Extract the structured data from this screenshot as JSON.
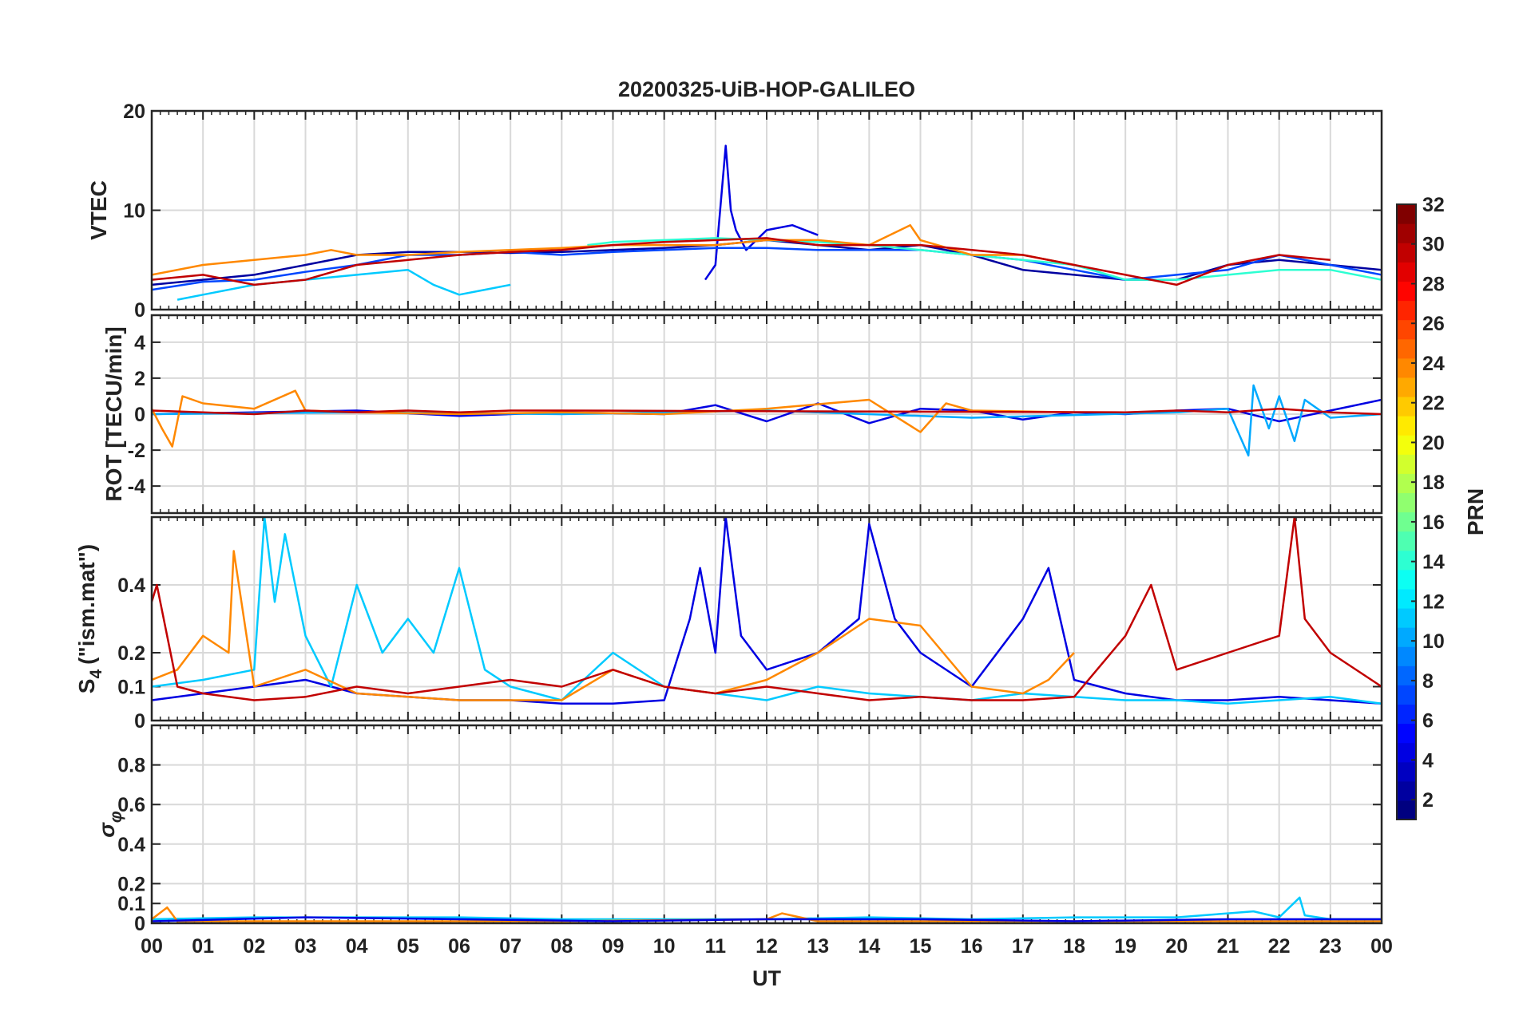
{
  "chart_data": {
    "type": "line",
    "title": "20200325-UiB-HOP-GALILEO",
    "xlabel": "UT",
    "x_ticks": [
      "00",
      "01",
      "02",
      "03",
      "04",
      "05",
      "06",
      "07",
      "08",
      "09",
      "10",
      "11",
      "12",
      "13",
      "14",
      "15",
      "16",
      "17",
      "18",
      "19",
      "20",
      "21",
      "22",
      "23",
      "00"
    ],
    "xlim_hours": [
      0,
      24
    ],
    "grid": true,
    "panels": [
      {
        "id": "vtec",
        "ylabel": "VTEC",
        "ylim": [
          0,
          20
        ],
        "yticks": [
          0,
          10,
          20
        ],
        "ytick_labels": [
          "0",
          "10",
          "20"
        ],
        "series": [
          {
            "name": "PRN 2",
            "prn": 2,
            "x": [
              0,
              1,
              2,
              3,
              4,
              5,
              6,
              7,
              8,
              9,
              10,
              11,
              12,
              13,
              14,
              15,
              16,
              17,
              18,
              19,
              20,
              21,
              22,
              23,
              24
            ],
            "values": [
              2.5,
              3.0,
              3.5,
              4.5,
              5.5,
              5.8,
              5.8,
              5.7,
              5.8,
              6.0,
              6.2,
              6.5,
              7.0,
              6.5,
              6.0,
              6.5,
              5.5,
              4.0,
              3.5,
              3.0,
              3.0,
              4.5,
              5.0,
              4.5,
              4.0
            ]
          },
          {
            "name": "PRN 4",
            "prn": 4,
            "x": [
              10.8,
              11.0,
              11.2,
              11.3,
              11.4,
              11.6,
              12.0,
              12.5,
              13.0
            ],
            "values": [
              3.0,
              4.5,
              16.5,
              10.0,
              8.0,
              6.0,
              8.0,
              8.5,
              7.5
            ]
          },
          {
            "name": "PRN 7",
            "prn": 7,
            "x": [
              0,
              1,
              2,
              3,
              4,
              5,
              6,
              7,
              8,
              9,
              10,
              11,
              12,
              13,
              14,
              15,
              16,
              17,
              18,
              19,
              20,
              21,
              22,
              23,
              24
            ],
            "values": [
              2.0,
              2.8,
              3.0,
              3.8,
              4.5,
              5.5,
              5.5,
              5.8,
              5.5,
              5.8,
              6.0,
              6.2,
              6.2,
              6.0,
              6.0,
              6.0,
              5.5,
              5.0,
              4.0,
              3.0,
              3.5,
              4.0,
              5.5,
              4.5,
              3.5
            ]
          },
          {
            "name": "PRN 11",
            "prn": 11,
            "x": [
              0.5,
              1.0,
              2.0,
              3.0,
              4.0,
              5.0,
              5.5,
              6.0,
              6.5,
              7.0
            ],
            "values": [
              1.0,
              1.5,
              2.5,
              3.0,
              3.5,
              4.0,
              2.5,
              1.5,
              2.0,
              2.5
            ]
          },
          {
            "name": "PRN 14",
            "prn": 14,
            "x": [
              8.5,
              9,
              10,
              11,
              12,
              13,
              14,
              15,
              16,
              17,
              18,
              19,
              20,
              21,
              22,
              23,
              24
            ],
            "values": [
              6.5,
              6.8,
              7.0,
              7.2,
              7.0,
              6.8,
              6.5,
              6.0,
              5.5,
              5.0,
              4.5,
              3.0,
              3.0,
              3.5,
              4.0,
              4.0,
              3.0
            ]
          },
          {
            "name": "PRN 24",
            "prn": 24,
            "x": [
              0,
              1,
              2,
              3,
              3.5,
              4,
              5,
              6,
              7,
              8,
              9,
              10,
              11,
              12,
              13,
              14,
              14.8,
              15,
              16,
              17,
              18
            ],
            "values": [
              3.5,
              4.5,
              5.0,
              5.5,
              6.0,
              5.5,
              5.5,
              5.8,
              6.0,
              6.2,
              6.5,
              6.5,
              6.5,
              7.0,
              7.0,
              6.5,
              8.5,
              7.0,
              5.5,
              5.5,
              4.5
            ]
          },
          {
            "name": "PRN 30",
            "prn": 30,
            "x": [
              0,
              1,
              2,
              3,
              4,
              5,
              6,
              7,
              8,
              9,
              10,
              11,
              12,
              13,
              14,
              15,
              16,
              17,
              18,
              19,
              20,
              21,
              22,
              23
            ],
            "values": [
              3.0,
              3.5,
              2.5,
              3.0,
              4.5,
              5.0,
              5.5,
              5.8,
              6.0,
              6.5,
              6.8,
              7.0,
              7.2,
              6.5,
              6.5,
              6.5,
              6.0,
              5.5,
              4.5,
              3.5,
              2.5,
              4.5,
              5.5,
              5.0
            ]
          }
        ]
      },
      {
        "id": "rot",
        "ylabel": "ROT [TECU/min]",
        "ylim": [
          -5.5,
          5.5
        ],
        "yticks": [
          -4,
          -2,
          0,
          2,
          4
        ],
        "ytick_labels": [
          "-4",
          "-2",
          "0",
          "2",
          "4"
        ],
        "series": [
          {
            "name": "PRN 4",
            "prn": 4,
            "x": [
              0,
              2,
              4,
              6,
              8,
              10,
              11,
              12,
              13,
              14,
              15,
              16,
              17,
              18,
              19,
              20,
              21,
              22,
              23,
              24
            ],
            "values": [
              0.0,
              0.1,
              0.2,
              -0.1,
              0.1,
              0.0,
              0.5,
              -0.4,
              0.6,
              -0.5,
              0.3,
              0.2,
              -0.3,
              0.1,
              0.0,
              0.2,
              0.3,
              -0.4,
              0.2,
              0.8
            ]
          },
          {
            "name": "PRN 10",
            "prn": 10,
            "x": [
              0,
              4,
              8,
              12,
              16,
              20,
              21,
              21.4,
              21.5,
              21.8,
              22.0,
              22.3,
              22.5,
              23,
              24
            ],
            "values": [
              0.0,
              0.1,
              0.0,
              0.2,
              -0.2,
              0.1,
              0.3,
              -2.3,
              1.6,
              -0.8,
              1.0,
              -1.5,
              0.8,
              -0.2,
              0.0
            ]
          },
          {
            "name": "PRN 24",
            "prn": 24,
            "x": [
              0,
              0.2,
              0.4,
              0.6,
              1,
              2,
              2.8,
              3,
              4,
              6,
              8,
              10,
              12,
              14,
              15,
              15.5,
              16,
              18
            ],
            "values": [
              0.3,
              -0.8,
              -1.8,
              1.0,
              0.6,
              0.3,
              1.3,
              0.2,
              0.1,
              0.0,
              0.1,
              0.0,
              0.3,
              0.8,
              -1.0,
              0.6,
              0.2,
              0.1
            ]
          },
          {
            "name": "PRN 30",
            "prn": 30,
            "x": [
              0,
              1,
              2,
              3,
              4,
              5,
              6,
              7,
              8,
              19,
              20,
              21,
              22,
              23,
              24
            ],
            "values": [
              0.2,
              0.1,
              0.0,
              0.2,
              0.1,
              0.2,
              0.1,
              0.2,
              0.2,
              0.1,
              0.2,
              0.1,
              0.3,
              0.1,
              0.0
            ]
          }
        ]
      },
      {
        "id": "s4",
        "ylabel": "S4 (\"ism.mat\")",
        "ylabel_main": "S",
        "ylabel_sub": "4",
        "ylabel_rest": "(\"ism.mat\")",
        "ylim": [
          0,
          0.6
        ],
        "yticks": [
          0,
          0.1,
          0.2,
          0.4
        ],
        "ytick_labels": [
          "0",
          "0.1",
          "0.2",
          "0.4"
        ],
        "series": [
          {
            "name": "PRN 4",
            "prn": 4,
            "x": [
              0,
              1,
              2,
              3,
              4,
              5,
              6,
              7,
              8,
              9,
              10,
              10.5,
              10.7,
              11,
              11.2,
              11.5,
              12,
              13,
              13.8,
              14,
              14.5,
              15,
              16,
              17,
              17.5,
              18,
              19,
              20,
              21,
              22,
              23,
              24
            ],
            "values": [
              0.06,
              0.08,
              0.1,
              0.12,
              0.08,
              0.07,
              0.06,
              0.06,
              0.05,
              0.05,
              0.06,
              0.3,
              0.45,
              0.2,
              0.6,
              0.25,
              0.15,
              0.2,
              0.3,
              0.58,
              0.3,
              0.2,
              0.1,
              0.3,
              0.45,
              0.12,
              0.08,
              0.06,
              0.06,
              0.07,
              0.06,
              0.05
            ]
          },
          {
            "name": "PRN 11",
            "prn": 11,
            "x": [
              0,
              1,
              2,
              2.2,
              2.4,
              2.6,
              3,
              3.5,
              4,
              4.5,
              5,
              5.5,
              6,
              6.5,
              7,
              8,
              9,
              10,
              11,
              12,
              13,
              14,
              15,
              16,
              17,
              18,
              19,
              20,
              21,
              22,
              23,
              24
            ],
            "values": [
              0.1,
              0.12,
              0.15,
              0.6,
              0.35,
              0.55,
              0.25,
              0.1,
              0.4,
              0.2,
              0.3,
              0.2,
              0.45,
              0.15,
              0.1,
              0.06,
              0.2,
              0.1,
              0.08,
              0.06,
              0.1,
              0.08,
              0.07,
              0.06,
              0.08,
              0.07,
              0.06,
              0.06,
              0.05,
              0.06,
              0.07,
              0.05
            ]
          },
          {
            "name": "PRN 24",
            "prn": 24,
            "x": [
              0,
              0.5,
              1,
              1.5,
              1.6,
              2,
              3,
              4,
              5,
              6,
              8,
              9,
              10,
              11,
              12,
              13,
              14,
              15,
              16,
              17,
              17.5,
              18
            ],
            "values": [
              0.12,
              0.15,
              0.25,
              0.2,
              0.5,
              0.1,
              0.15,
              0.08,
              0.07,
              0.06,
              0.06,
              0.15,
              0.1,
              0.08,
              0.12,
              0.2,
              0.3,
              0.28,
              0.1,
              0.08,
              0.12,
              0.2
            ]
          },
          {
            "name": "PRN 30",
            "prn": 30,
            "x": [
              0,
              0.1,
              0.5,
              1,
              2,
              3,
              4,
              5,
              6,
              7,
              8,
              9,
              10,
              11,
              12,
              13,
              14,
              15,
              16,
              17,
              18,
              19,
              19.5,
              20,
              21,
              22,
              22.3,
              22.5,
              23,
              24
            ],
            "values": [
              0.35,
              0.4,
              0.1,
              0.08,
              0.06,
              0.07,
              0.1,
              0.08,
              0.1,
              0.12,
              0.1,
              0.15,
              0.1,
              0.08,
              0.1,
              0.08,
              0.06,
              0.07,
              0.06,
              0.06,
              0.07,
              0.25,
              0.4,
              0.15,
              0.2,
              0.25,
              0.6,
              0.3,
              0.2,
              0.1
            ]
          }
        ]
      },
      {
        "id": "sigma",
        "ylabel": "σφ",
        "ylabel_main": "σ",
        "ylabel_sub": "φ",
        "ylim": [
          0,
          1
        ],
        "yticks": [
          0,
          0.1,
          0.2,
          0.4,
          0.6,
          0.8
        ],
        "ytick_labels": [
          "0",
          "0.1",
          "0.2",
          "0.4",
          "0.6",
          "0.8"
        ],
        "series": [
          {
            "name": "PRN 11",
            "prn": 11,
            "x": [
              0,
              2,
              4,
              6,
              8,
              10,
              12,
              14,
              16,
              18,
              20,
              21,
              21.5,
              22,
              22.4,
              22.5,
              23,
              24
            ],
            "values": [
              0.02,
              0.03,
              0.03,
              0.03,
              0.02,
              0.02,
              0.02,
              0.03,
              0.02,
              0.03,
              0.03,
              0.05,
              0.06,
              0.03,
              0.13,
              0.04,
              0.02,
              0.02
            ]
          },
          {
            "name": "PRN 24",
            "prn": 24,
            "x": [
              0,
              0.3,
              0.5,
              1,
              4,
              8,
              12,
              12.3,
              13,
              16,
              20,
              24
            ],
            "values": [
              0.02,
              0.08,
              0.01,
              0.01,
              0.01,
              0.01,
              0.02,
              0.05,
              0.01,
              0.01,
              0.01,
              0.01
            ]
          },
          {
            "name": "PRN 4",
            "prn": 4,
            "x": [
              0,
              3,
              6,
              9,
              12,
              15,
              18,
              21,
              24
            ],
            "values": [
              0.01,
              0.03,
              0.02,
              0.01,
              0.02,
              0.02,
              0.01,
              0.02,
              0.02
            ]
          }
        ]
      }
    ],
    "colorbar": {
      "label": "PRN",
      "min": 1,
      "max": 32,
      "ticks": [
        2,
        4,
        6,
        8,
        10,
        12,
        14,
        16,
        18,
        20,
        22,
        24,
        26,
        28,
        30,
        32
      ],
      "tick_labels": [
        "2",
        "4",
        "6",
        "8",
        "10",
        "12",
        "14",
        "16",
        "18",
        "20",
        "22",
        "24",
        "26",
        "28",
        "30",
        "32"
      ],
      "colormap": "jet",
      "levels": 32
    }
  }
}
